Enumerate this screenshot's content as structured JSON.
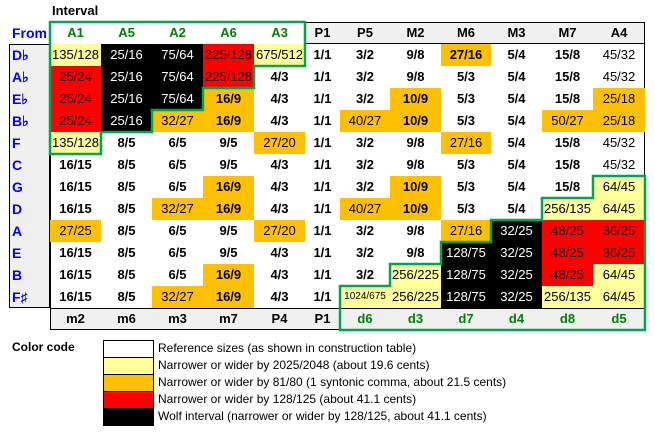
{
  "labels": {
    "interval": "Interval",
    "from": "From",
    "color_code": "Color code"
  },
  "top_headers": [
    "A1",
    "A5",
    "A2",
    "A6",
    "A3",
    "P1",
    "P5",
    "M2",
    "M6",
    "M3",
    "M7",
    "A4"
  ],
  "bottom_headers": [
    "m2",
    "m6",
    "m3",
    "m7",
    "P4",
    "P1",
    "d6",
    "d3",
    "d7",
    "d4",
    "d8",
    "d5"
  ],
  "colors": {
    "w": "#ffffff",
    "y": "#ffff99",
    "o": "#ffc000",
    "r": "#ff0000",
    "k": "#000000",
    "outline": "#00a550",
    "from_text": "#0000ff",
    "header_green": "#008000"
  },
  "rows": [
    {
      "from": "D♭",
      "cells": [
        [
          "135/128",
          "y"
        ],
        [
          "25/16",
          "k"
        ],
        [
          "75/64",
          "k"
        ],
        [
          "225/128",
          "r"
        ],
        [
          "675/512",
          "y"
        ],
        [
          "1/1",
          "w"
        ],
        [
          "3/2",
          "w"
        ],
        [
          "9/8",
          "w"
        ],
        [
          "27/16",
          "o"
        ],
        [
          "5/4",
          "w"
        ],
        [
          "15/8",
          "w"
        ],
        [
          "45/32",
          "t"
        ]
      ]
    },
    {
      "from": "A♭",
      "cells": [
        [
          "25/24",
          "r"
        ],
        [
          "25/16",
          "k"
        ],
        [
          "75/64",
          "k"
        ],
        [
          "225/128",
          "r"
        ],
        [
          "4/3",
          "w"
        ],
        [
          "1/1",
          "w"
        ],
        [
          "3/2",
          "w"
        ],
        [
          "9/8",
          "w"
        ],
        [
          "5/3",
          "w"
        ],
        [
          "5/4",
          "w"
        ],
        [
          "15/8",
          "w"
        ],
        [
          "45/32",
          "t"
        ]
      ]
    },
    {
      "from": "E♭",
      "cells": [
        [
          "25/24",
          "r"
        ],
        [
          "25/16",
          "k"
        ],
        [
          "75/64",
          "k"
        ],
        [
          "16/9",
          "o"
        ],
        [
          "4/3",
          "w"
        ],
        [
          "1/1",
          "w"
        ],
        [
          "3/2",
          "w"
        ],
        [
          "10/9",
          "o"
        ],
        [
          "5/3",
          "w"
        ],
        [
          "5/4",
          "w"
        ],
        [
          "15/8",
          "w"
        ],
        [
          "25/18",
          "ot"
        ]
      ]
    },
    {
      "from": "B♭",
      "cells": [
        [
          "25/24",
          "r"
        ],
        [
          "25/16",
          "k"
        ],
        [
          "32/27",
          "ot"
        ],
        [
          "16/9",
          "o"
        ],
        [
          "4/3",
          "w"
        ],
        [
          "1/1",
          "w"
        ],
        [
          "40/27",
          "ot"
        ],
        [
          "10/9",
          "o"
        ],
        [
          "5/3",
          "w"
        ],
        [
          "5/4",
          "w"
        ],
        [
          "50/27",
          "ot"
        ],
        [
          "25/18",
          "ot"
        ]
      ]
    },
    {
      "from": "F",
      "cells": [
        [
          "135/128",
          "y"
        ],
        [
          "8/5",
          "w"
        ],
        [
          "6/5",
          "w"
        ],
        [
          "9/5",
          "w"
        ],
        [
          "27/20",
          "ot"
        ],
        [
          "1/1",
          "w"
        ],
        [
          "3/2",
          "w"
        ],
        [
          "9/8",
          "w"
        ],
        [
          "27/16",
          "ot"
        ],
        [
          "5/4",
          "w"
        ],
        [
          "15/8",
          "w"
        ],
        [
          "45/32",
          "t"
        ]
      ]
    },
    {
      "from": "C",
      "cells": [
        [
          "16/15",
          "w"
        ],
        [
          "8/5",
          "w"
        ],
        [
          "6/5",
          "w"
        ],
        [
          "9/5",
          "w"
        ],
        [
          "4/3",
          "w"
        ],
        [
          "1/1",
          "w"
        ],
        [
          "3/2",
          "w"
        ],
        [
          "9/8",
          "w"
        ],
        [
          "5/3",
          "w"
        ],
        [
          "5/4",
          "w"
        ],
        [
          "15/8",
          "w"
        ],
        [
          "45/32",
          "t"
        ]
      ]
    },
    {
      "from": "G",
      "cells": [
        [
          "16/15",
          "w"
        ],
        [
          "8/5",
          "w"
        ],
        [
          "6/5",
          "w"
        ],
        [
          "16/9",
          "o"
        ],
        [
          "4/3",
          "w"
        ],
        [
          "1/1",
          "w"
        ],
        [
          "3/2",
          "w"
        ],
        [
          "10/9",
          "o"
        ],
        [
          "5/3",
          "w"
        ],
        [
          "5/4",
          "w"
        ],
        [
          "15/8",
          "w"
        ],
        [
          "64/45",
          "y"
        ]
      ]
    },
    {
      "from": "D",
      "cells": [
        [
          "16/15",
          "w"
        ],
        [
          "8/5",
          "w"
        ],
        [
          "32/27",
          "ot"
        ],
        [
          "16/9",
          "o"
        ],
        [
          "4/3",
          "w"
        ],
        [
          "1/1",
          "w"
        ],
        [
          "40/27",
          "ot"
        ],
        [
          "10/9",
          "o"
        ],
        [
          "5/3",
          "w"
        ],
        [
          "5/4",
          "w"
        ],
        [
          "256/135",
          "y"
        ],
        [
          "64/45",
          "y"
        ]
      ]
    },
    {
      "from": "A",
      "cells": [
        [
          "27/25",
          "ot"
        ],
        [
          "8/5",
          "w"
        ],
        [
          "6/5",
          "w"
        ],
        [
          "9/5",
          "w"
        ],
        [
          "27/20",
          "ot"
        ],
        [
          "1/1",
          "w"
        ],
        [
          "3/2",
          "w"
        ],
        [
          "9/8",
          "w"
        ],
        [
          "27/16",
          "ot"
        ],
        [
          "32/25",
          "k"
        ],
        [
          "48/25",
          "r"
        ],
        [
          "36/25",
          "r"
        ]
      ]
    },
    {
      "from": "E",
      "cells": [
        [
          "16/15",
          "w"
        ],
        [
          "8/5",
          "w"
        ],
        [
          "6/5",
          "w"
        ],
        [
          "9/5",
          "w"
        ],
        [
          "4/3",
          "w"
        ],
        [
          "1/1",
          "w"
        ],
        [
          "3/2",
          "w"
        ],
        [
          "9/8",
          "w"
        ],
        [
          "128/75",
          "k"
        ],
        [
          "32/25",
          "k"
        ],
        [
          "48/25",
          "r"
        ],
        [
          "36/25",
          "r"
        ]
      ]
    },
    {
      "from": "B",
      "cells": [
        [
          "16/15",
          "w"
        ],
        [
          "8/5",
          "w"
        ],
        [
          "6/5",
          "w"
        ],
        [
          "16/9",
          "o"
        ],
        [
          "4/3",
          "w"
        ],
        [
          "1/1",
          "w"
        ],
        [
          "3/2",
          "w"
        ],
        [
          "256/225",
          "y"
        ],
        [
          "128/75",
          "k"
        ],
        [
          "32/25",
          "k"
        ],
        [
          "48/25",
          "r"
        ],
        [
          "64/45",
          "y"
        ]
      ]
    },
    {
      "from": "F♯",
      "cells": [
        [
          "16/15",
          "w"
        ],
        [
          "8/5",
          "w"
        ],
        [
          "32/27",
          "ot"
        ],
        [
          "16/9",
          "o"
        ],
        [
          "4/3",
          "w"
        ],
        [
          "1/1",
          "w"
        ],
        [
          "1024/675",
          "ys"
        ],
        [
          "256/225",
          "y"
        ],
        [
          "128/75",
          "k"
        ],
        [
          "32/25",
          "k"
        ],
        [
          "256/135",
          "y"
        ],
        [
          "64/45",
          "y"
        ]
      ]
    }
  ],
  "legend": [
    {
      "color": "w",
      "text": "Reference sizes (as shown in construction table)"
    },
    {
      "color": "y",
      "text": "Narrower or wider by 2025/2048 (about 19.6 cents)"
    },
    {
      "color": "o",
      "text": "Narrower or wider by 81/80 (1 syntonic comma, about 21.5 cents)"
    },
    {
      "color": "r",
      "text": "Narrower or wider by 128/125 (about 41.1 cents)"
    },
    {
      "color": "k",
      "text": "Wolf interval (narrower or wider by 128/125, about 41.1 cents)"
    }
  ]
}
